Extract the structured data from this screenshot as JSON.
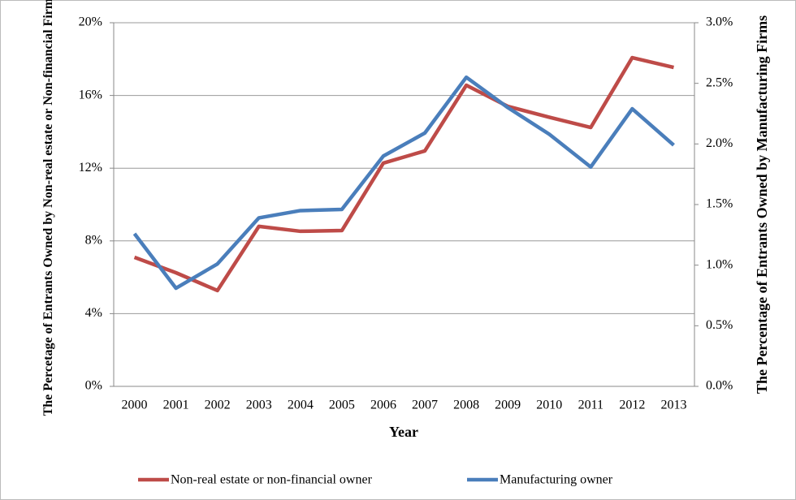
{
  "chart_data": {
    "type": "line",
    "x_label": "Year",
    "y_label": "The Percetage of Entrants Owned by Non-real estate or Non-financial Firms",
    "y2_label": "The Percentage of Entrants Owned by Manufacturing Firms",
    "categories": [
      "2000",
      "2001",
      "2002",
      "2003",
      "2004",
      "2005",
      "2006",
      "2007",
      "2008",
      "2009",
      "2010",
      "2011",
      "2012",
      "2013"
    ],
    "series": [
      {
        "name": "Non-real estate or non-financial owner",
        "color": "#be4b48",
        "values": [
          7.1,
          6.25,
          5.27,
          8.8,
          8.53,
          8.57,
          12.28,
          12.95,
          16.56,
          15.4,
          14.8,
          14.24,
          18.08,
          17.54
        ]
      },
      {
        "name": "Manufacturing owner",
        "color": "#4a7ebb",
        "axis": "y2",
        "values": [
          1.26,
          0.81,
          1.01,
          1.39,
          1.45,
          1.46,
          1.9,
          2.09,
          2.55,
          2.3,
          2.08,
          1.81,
          2.29,
          1.99
        ]
      }
    ],
    "ylim": [
      0,
      20
    ],
    "yticks": [
      {
        "value": 0,
        "label": "0%"
      },
      {
        "value": 4,
        "label": "4%"
      },
      {
        "value": 8,
        "label": "8%"
      },
      {
        "value": 12,
        "label": "12%"
      },
      {
        "value": 16,
        "label": "16%"
      },
      {
        "value": 20,
        "label": "20%"
      }
    ],
    "y2lim": [
      0,
      3
    ],
    "y2ticks": [
      {
        "value": 0,
        "label": "0.0%"
      },
      {
        "value": 0.5,
        "label": "0.5%"
      },
      {
        "value": 1,
        "label": "1.0%"
      },
      {
        "value": 1.5,
        "label": "1.5%"
      },
      {
        "value": 2,
        "label": "2.0%"
      },
      {
        "value": 2.5,
        "label": "2.5%"
      },
      {
        "value": 3,
        "label": "3.0%"
      }
    ],
    "grid": true,
    "legend": "bottom"
  }
}
